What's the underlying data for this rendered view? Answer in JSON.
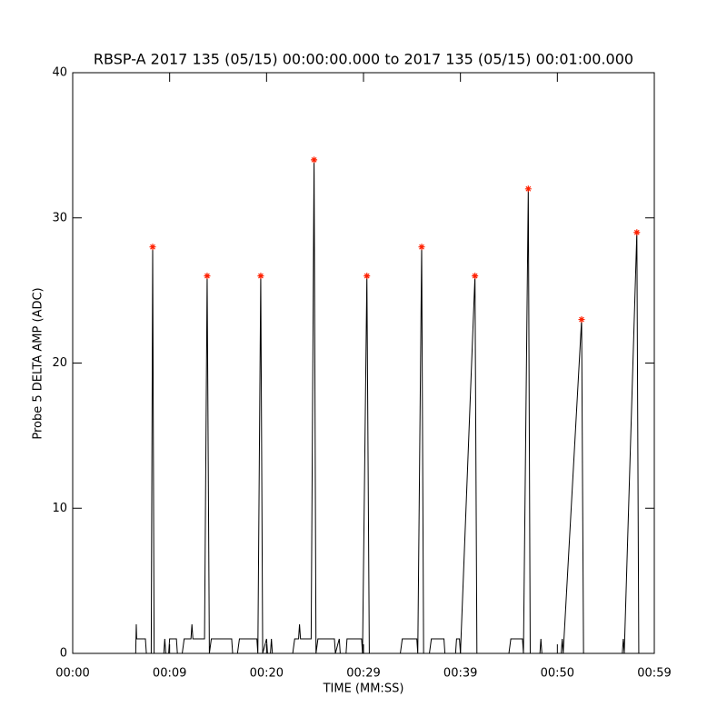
{
  "chart_data": {
    "type": "line",
    "title": "RBSP-A 2017 135 (05/15) 00:00:00.000 to 2017 135 (05/15) 00:01:00.000",
    "xlabel": "TIME (MM:SS)",
    "ylabel": "Probe 5 DELTA AMP (ADC)",
    "xlim": [
      0,
      60
    ],
    "ylim": [
      0,
      40
    ],
    "xticks": [
      {
        "value": 0,
        "label": "00:00"
      },
      {
        "value": 10,
        "label": "00:09"
      },
      {
        "value": 20,
        "label": "00:20"
      },
      {
        "value": 30,
        "label": "00:29"
      },
      {
        "value": 40,
        "label": "00:39"
      },
      {
        "value": 50,
        "label": "00:50"
      },
      {
        "value": 60,
        "label": "00:59"
      }
    ],
    "yticks": [
      0,
      10,
      20,
      30,
      40
    ],
    "series": [
      {
        "color": "#000000",
        "marker": "none",
        "x": [
          0,
          6.5,
          6.56,
          6.6,
          7.5,
          7.6,
          8.1,
          8.25,
          8.4,
          9.4,
          9.5,
          9.6,
          9.9,
          10.0,
          10.7,
          10.8,
          11.3,
          11.5,
          12.2,
          12.3,
          12.4,
          13.6,
          13.87,
          14.1,
          14.3,
          16.4,
          16.5,
          17.0,
          17.2,
          19.0,
          19.1,
          19.4,
          19.6,
          20.0,
          20.1,
          20.4,
          20.5,
          20.6,
          22.7,
          22.9,
          23.3,
          23.4,
          23.5,
          24.6,
          24.9,
          25.1,
          25.3,
          27.0,
          27.1,
          27.5,
          27.6,
          28.2,
          28.3,
          29.8,
          29.9,
          30.35,
          30.6,
          33.8,
          34.0,
          35.5,
          35.6,
          36.0,
          36.2,
          36.8,
          37.0,
          38.3,
          38.4,
          39.5,
          39.6,
          39.9,
          40.0,
          41.5,
          41.7,
          45.0,
          45.2,
          46.4,
          46.5,
          47.0,
          47.2,
          48.2,
          48.3,
          48.4,
          50.4,
          50.5,
          50.6,
          52.5,
          52.7,
          56.7,
          56.8,
          56.9,
          58.2,
          58.4,
          60
        ],
        "values": [
          0,
          0,
          2,
          1,
          1,
          0,
          0,
          28,
          0,
          0,
          1,
          0,
          0,
          1,
          1,
          0,
          0,
          1,
          1,
          2,
          1,
          1,
          26,
          0,
          1,
          1,
          0,
          0,
          1,
          1,
          0,
          26,
          0,
          1,
          0,
          0,
          1,
          0,
          0,
          1,
          1,
          2,
          1,
          1,
          34,
          0,
          1,
          1,
          0,
          1,
          0,
          0,
          1,
          1,
          0,
          26,
          0,
          0,
          1,
          1,
          0,
          28,
          0,
          0,
          1,
          1,
          0,
          0,
          1,
          1,
          0,
          26,
          0,
          0,
          1,
          1,
          0,
          32,
          0,
          0,
          1,
          0,
          0,
          1,
          0,
          23,
          0,
          0,
          1,
          0,
          29,
          0,
          0
        ]
      },
      {
        "color": "#ff2000",
        "marker": "asterisk",
        "x": [
          8.25,
          13.87,
          19.4,
          24.9,
          30.35,
          36.0,
          41.5,
          47.0,
          52.5,
          58.2
        ],
        "values": [
          28,
          26,
          26,
          34,
          26,
          28,
          26,
          32,
          23,
          29
        ]
      }
    ]
  }
}
